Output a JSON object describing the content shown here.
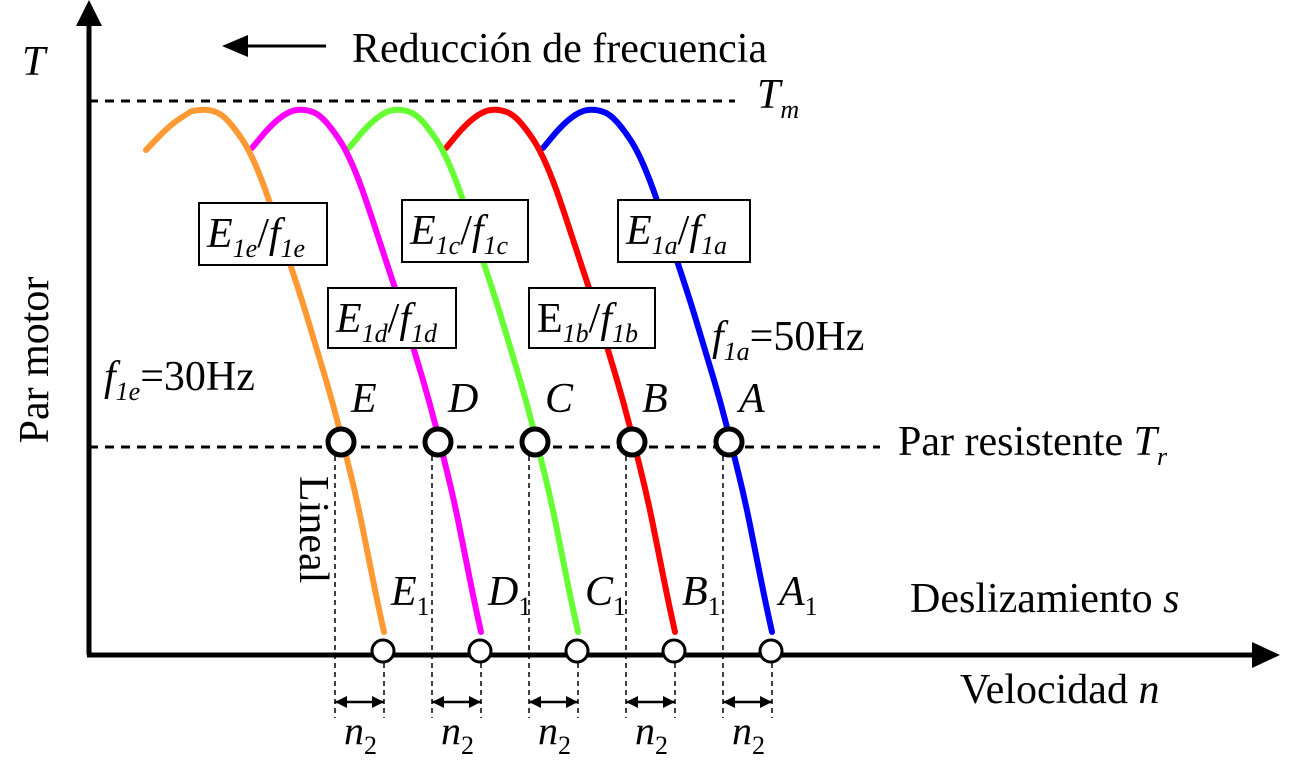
{
  "axes": {
    "y_symbol": "T",
    "y_label": "Par motor",
    "x_label_text": "Velocidad ",
    "x_label_var": "n"
  },
  "top_note": "Reducción de frecuencia",
  "tm_line": {
    "main": "T",
    "sub": "m"
  },
  "tr_line": {
    "text": "Par resistente ",
    "main": "T",
    "sub": "r"
  },
  "slip_label": {
    "text": "Deslizamiento ",
    "var": "s"
  },
  "lineal_label": "Lineal",
  "freq_labels": {
    "a": {
      "f": "f",
      "sub": "1a",
      "value": "=50Hz"
    },
    "e": {
      "f": "f",
      "sub": "1e",
      "value": "=30Hz"
    }
  },
  "curves": [
    {
      "id": "a",
      "color": "#0000ff",
      "point": "A",
      "base": "A",
      "base_sub": "1",
      "ratio": {
        "e": "E",
        "e_sub": "1a",
        "f": "f",
        "f_sub": "1a",
        "upright": false
      }
    },
    {
      "id": "b",
      "color": "#ff0000",
      "point": "B",
      "base": "B",
      "base_sub": "1",
      "ratio": {
        "e": "E",
        "e_sub": "1b",
        "f": "f",
        "f_sub": "1b",
        "upright": true
      }
    },
    {
      "id": "c",
      "color": "#66ff33",
      "point": "C",
      "base": "C",
      "base_sub": "1",
      "ratio": {
        "e": "E",
        "e_sub": "1c",
        "f": "f",
        "f_sub": "1c",
        "upright": false
      }
    },
    {
      "id": "d",
      "color": "#ff00ff",
      "point": "D",
      "base": "D",
      "base_sub": "1",
      "ratio": {
        "e": "E",
        "e_sub": "1d",
        "f": "f",
        "f_sub": "1d",
        "upright": false
      }
    },
    {
      "id": "e",
      "color": "#ff9933",
      "point": "E",
      "base": "E",
      "base_sub": "1",
      "ratio": {
        "e": "E",
        "e_sub": "1e",
        "f": "f",
        "f_sub": "1e",
        "upright": false
      }
    }
  ],
  "n2": {
    "main": "n",
    "sub": "2"
  }
}
